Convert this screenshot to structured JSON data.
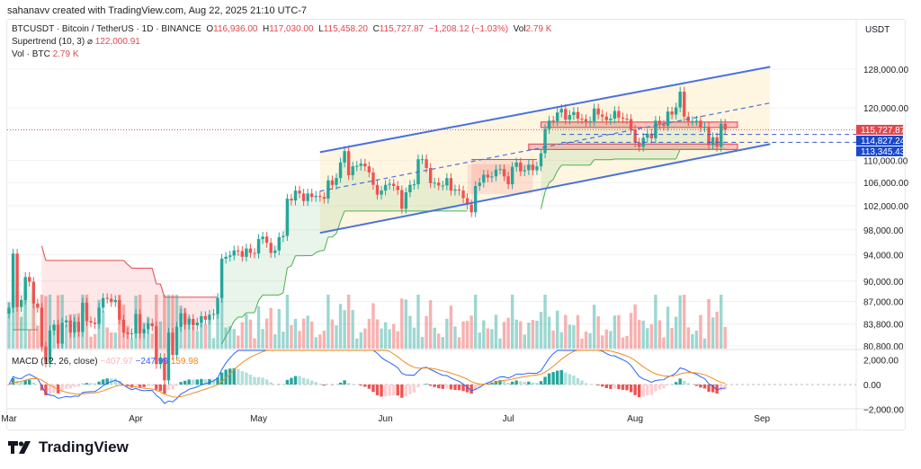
{
  "credit": "sahanavv created with TradingView.com, Aug 22, 2025 21:10 UTC-7",
  "legend": {
    "symbol": "BTCUSDT · Bitcoin / TetherUS · 1D · BINANCE",
    "o_label": "O",
    "o": "116,936.00",
    "h_label": "H",
    "h": "117,030.00",
    "l_label": "L",
    "l": "115,458.20",
    "c_label": "C",
    "c": "115,727.87",
    "change": "−1,208.12 (−1.03%)",
    "vol_label": "Vol",
    "vol": "2.79 K",
    "supertrend_label": "Supertrend (10, 3)",
    "supertrend_value": "122,000.91",
    "volume_label": "Vol · BTC",
    "volume_value": "2.79 K",
    "macd_label": "MACD (12, 26, close)",
    "macd_hist": "−407.97",
    "macd_line": "−247.99",
    "macd_signal": "159.98"
  },
  "currency": "USDT",
  "logo_text": "TradingView",
  "colors": {
    "up": "#26a69a",
    "down": "#ef5350",
    "channel": "#4a72d8",
    "macd": "#2962ff",
    "signal": "#f08c1e",
    "price_label": "#e0484e",
    "level_label": "#1848cc"
  },
  "chart_data": {
    "type": "candlestick",
    "scale": "log",
    "start_date": "2025-03-01",
    "closes_k": [
      86.1,
      94.2,
      86.2,
      87.2,
      90.6,
      89.9,
      86.7,
      86.1,
      80.7,
      78.6,
      82.9,
      83.7,
      81.1,
      84.0,
      84.3,
      82.6,
      84.1,
      82.7,
      86.8,
      84.2,
      84.0,
      83.8,
      86.1,
      87.5,
      87.4,
      86.9,
      87.2,
      84.4,
      82.6,
      82.4,
      82.5,
      85.2,
      82.5,
      83.1,
      83.9,
      83.5,
      78.4,
      79.2,
      76.3,
      82.6,
      79.6,
      83.4,
      85.3,
      83.7,
      84.5,
      83.6,
      84.0,
      84.9,
      84.4,
      85.1,
      85.2,
      87.5,
      93.4,
      93.7,
      93.9,
      94.7,
      94.6,
      93.7,
      95.0,
      94.3,
      94.2,
      96.5,
      96.9,
      95.9,
      94.3,
      94.7,
      96.8,
      97.0,
      103.2,
      102.9,
      104.6,
      104.1,
      102.8,
      104.1,
      103.5,
      103.7,
      103.5,
      103.2,
      106.4,
      105.6,
      106.8,
      109.6,
      111.7,
      107.3,
      108.9,
      109.0,
      109.4,
      108.9,
      107.8,
      105.6,
      103.9,
      104.6,
      105.6,
      105.8,
      105.4,
      104.7,
      101.5,
      104.3,
      105.6,
      105.7,
      110.2,
      110.2,
      108.6,
      105.9,
      106.0,
      105.5,
      105.5,
      106.8,
      104.6,
      104.8,
      104.6,
      103.3,
      102.2,
      100.9,
      105.4,
      106.0,
      107.4,
      106.9,
      107.1,
      108.3,
      108.4,
      107.1,
      105.7,
      108.8,
      109.6,
      108.0,
      108.2,
      109.2,
      108.2,
      108.9,
      111.3,
      115.9,
      117.5,
      117.4,
      119.1,
      119.8,
      117.7,
      118.6,
      119.2,
      117.9,
      117.8,
      117.3,
      117.4,
      119.9,
      118.7,
      118.3,
      117.6,
      117.9,
      119.4,
      118.1,
      117.9,
      117.8,
      115.8,
      113.3,
      112.5,
      114.2,
      115.0,
      114.1,
      117.5,
      116.7,
      116.5,
      119.3,
      118.7,
      120.1,
      123.3,
      118.3,
      117.4,
      117.4,
      117.5,
      116.2,
      116.3,
      112.8,
      114.3,
      112.5,
      116.9,
      115.73
    ],
    "price_ticks": [
      128000,
      120000,
      110000,
      106000,
      102000,
      98000,
      94000,
      90000,
      87000,
      83800,
      80800
    ],
    "price_tick_labels": [
      "128,000.00",
      "120,000.00",
      "110,000.00",
      "106,000.00",
      "102,000.00",
      "98,000.00",
      "94,000.00",
      "90,000.00",
      "87,000.00",
      "83,800.00",
      "80,800.00"
    ],
    "macd_ticks": [
      2000,
      0,
      -2000
    ],
    "macd_tick_labels": [
      "2,000.00",
      "0.00",
      "−2,000.00"
    ],
    "x_ticks": [
      {
        "label": "Mar",
        "day": 0
      },
      {
        "label": "Apr",
        "day": 31
      },
      {
        "label": "May",
        "day": 61
      },
      {
        "label": "Jun",
        "day": 92
      },
      {
        "label": "Jul",
        "day": 122
      },
      {
        "label": "Aug",
        "day": 153
      },
      {
        "label": "Sep",
        "day": 184
      }
    ],
    "price_labels": [
      {
        "value": 115727.87,
        "text": "115,727.87",
        "kind": "last"
      },
      {
        "value": 114827.24,
        "text": "114,827.24",
        "kind": "level"
      },
      {
        "value": 113345.43,
        "text": "113,345.43",
        "kind": "level"
      }
    ],
    "channel": {
      "start_day": 76,
      "end_day": 186,
      "upper": [
        111500,
        128500
      ],
      "lower": [
        97500,
        113000
      ],
      "mid": [
        104500,
        121000
      ]
    },
    "zones": [
      {
        "price": 116700,
        "from_day": 130,
        "to_day": 178
      },
      {
        "price": 112500,
        "from_day": 127,
        "to_day": 178
      }
    ]
  }
}
